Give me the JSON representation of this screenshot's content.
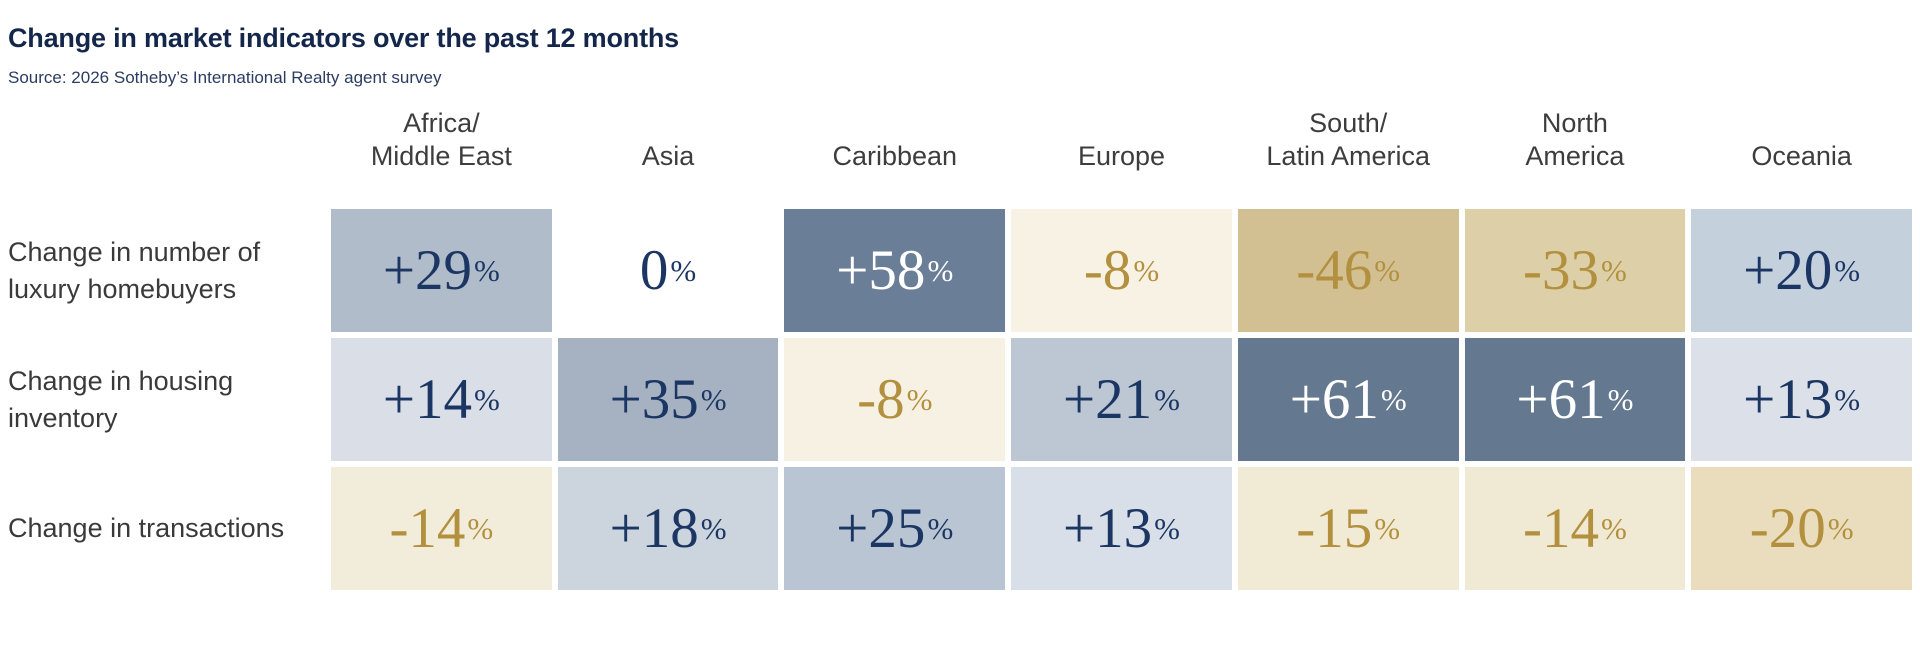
{
  "header": {
    "title": "Change in market indicators over the past 12 months",
    "source": "Source: 2026 Sotheby’s International Realty agent survey"
  },
  "colors": {
    "navy_text": "#1c3664",
    "gold_text": "#b2903e",
    "white_text": "#ffffff",
    "title_navy": "#14274a",
    "label_gray": "#3a3a3a"
  },
  "columns": [
    {
      "line1": "Africa/",
      "line2": "Middle East"
    },
    {
      "line1": "Asia",
      "line2": ""
    },
    {
      "line1": "Caribbean",
      "line2": ""
    },
    {
      "line1": "Europe",
      "line2": ""
    },
    {
      "line1": "South/",
      "line2": "Latin America"
    },
    {
      "line1": "North",
      "line2": "America"
    },
    {
      "line1": "Oceania",
      "line2": ""
    }
  ],
  "rows": [
    {
      "label1": "Change in number of",
      "label2": "luxury homebuyers",
      "cells": [
        {
          "value": "+29",
          "suffix": "%",
          "bg": "#b0bcc9",
          "fg": "#1c3664"
        },
        {
          "value": "0",
          "suffix": "%",
          "bg": "#ffffff",
          "fg": "#1c3664"
        },
        {
          "value": "+58",
          "suffix": "%",
          "bg": "#6a7e97",
          "fg": "#ffffff"
        },
        {
          "value": "-8",
          "suffix": "%",
          "bg": "#f7f2e4",
          "fg": "#b2903e"
        },
        {
          "value": "-46",
          "suffix": "%",
          "bg": "#d2bf92",
          "fg": "#b2903e"
        },
        {
          "value": "-33",
          "suffix": "%",
          "bg": "#ddd0a8",
          "fg": "#b2903e"
        },
        {
          "value": "+20",
          "suffix": "%",
          "bg": "#c5d0dd",
          "fg": "#1c3664"
        }
      ]
    },
    {
      "label1": "Change in housing",
      "label2": "inventory",
      "cells": [
        {
          "value": "+14",
          "suffix": "%",
          "bg": "#d9dee7",
          "fg": "#1c3664"
        },
        {
          "value": "+35",
          "suffix": "%",
          "bg": "#a6b2c2",
          "fg": "#1c3664"
        },
        {
          "value": "-8",
          "suffix": "%",
          "bg": "#f6f1e3",
          "fg": "#b2903e"
        },
        {
          "value": "+21",
          "suffix": "%",
          "bg": "#bcc7d3",
          "fg": "#1c3664"
        },
        {
          "value": "+61",
          "suffix": "%",
          "bg": "#64788f",
          "fg": "#ffffff"
        },
        {
          "value": "+61",
          "suffix": "%",
          "bg": "#64788f",
          "fg": "#ffffff"
        },
        {
          "value": "+13",
          "suffix": "%",
          "bg": "#dce1e9",
          "fg": "#1c3664"
        }
      ]
    },
    {
      "label1": "Change in transactions",
      "label2": "",
      "cells": [
        {
          "value": "-14",
          "suffix": "%",
          "bg": "#f2ecda",
          "fg": "#b2903e"
        },
        {
          "value": "+18",
          "suffix": "%",
          "bg": "#ccd4de",
          "fg": "#1c3664"
        },
        {
          "value": "+25",
          "suffix": "%",
          "bg": "#b9c5d2",
          "fg": "#1c3664"
        },
        {
          "value": "+13",
          "suffix": "%",
          "bg": "#d9dfe8",
          "fg": "#1c3664"
        },
        {
          "value": "-15",
          "suffix": "%",
          "bg": "#f1ead5",
          "fg": "#b2903e"
        },
        {
          "value": "-14",
          "suffix": "%",
          "bg": "#f0e9d4",
          "fg": "#b2903e"
        },
        {
          "value": "-20",
          "suffix": "%",
          "bg": "#e9ddbd",
          "fg": "#b2903e"
        }
      ]
    }
  ],
  "chart_data": {
    "type": "heatmap",
    "title": "Change in market indicators over the past 12 months",
    "source": "Source: 2026 Sotheby’s International Realty agent survey",
    "columns": [
      "Africa/Middle East",
      "Asia",
      "Caribbean",
      "Europe",
      "South/Latin America",
      "North America",
      "Oceania"
    ],
    "rows": [
      "Change in number of luxury homebuyers",
      "Change in housing inventory",
      "Change in transactions"
    ],
    "values_percent": [
      [
        29,
        0,
        58,
        -8,
        -46,
        -33,
        20
      ],
      [
        14,
        35,
        -8,
        21,
        61,
        61,
        13
      ],
      [
        -14,
        18,
        25,
        13,
        -15,
        -14,
        -20
      ]
    ],
    "unit": "%",
    "legend_position": "none",
    "color_encoding": "blue shades = positive change (darker = larger), tan/gold shades = negative change (darker = larger), white = zero"
  }
}
